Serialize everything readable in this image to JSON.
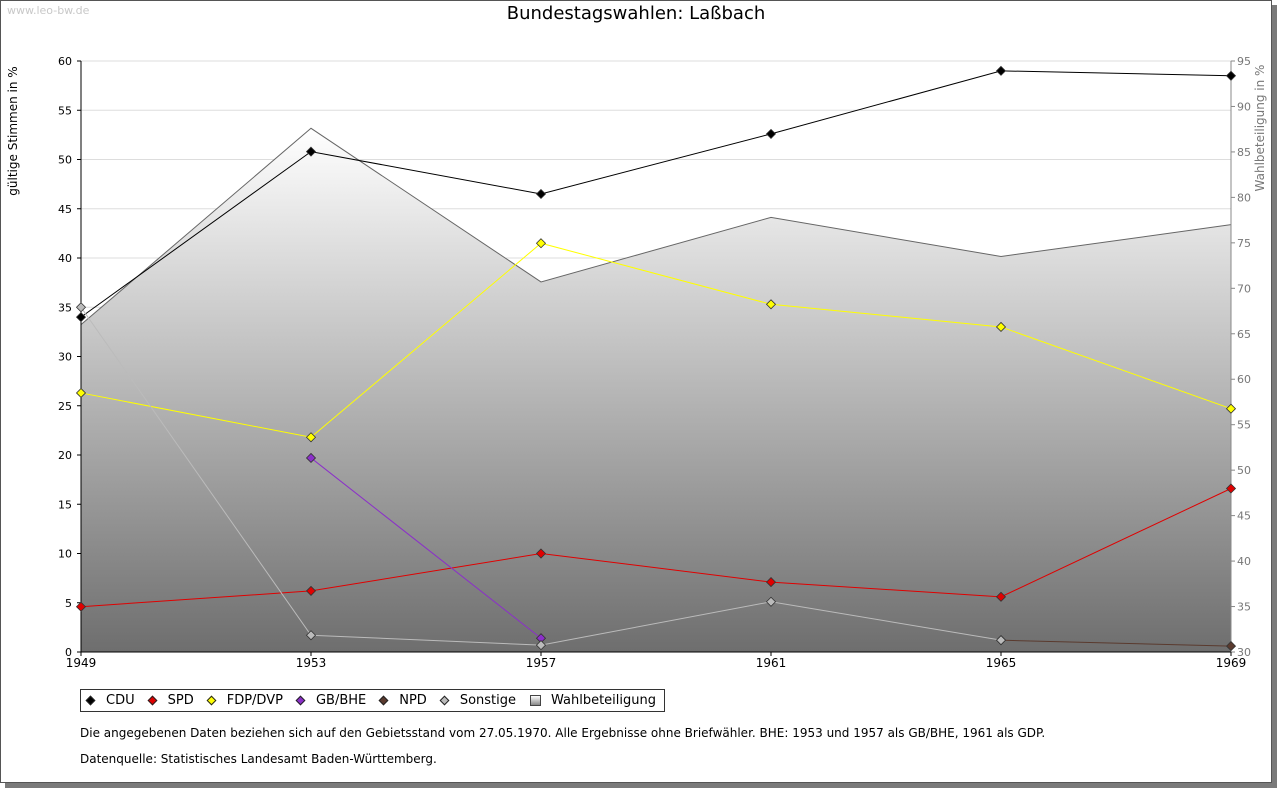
{
  "watermark": "www.leo-bw.de",
  "chart_data": {
    "type": "line",
    "title": "Bundestagswahlen: Laßbach",
    "ylabel": "gültige Stimmen in %",
    "ylabel_right": "Wahlbeteiligung in %",
    "ylim": [
      0,
      60
    ],
    "ylim_right": [
      30,
      95
    ],
    "yticks": [
      0,
      5,
      10,
      15,
      20,
      25,
      30,
      35,
      40,
      45,
      50,
      55,
      60
    ],
    "yticks_right": [
      30,
      35,
      40,
      45,
      50,
      55,
      60,
      65,
      70,
      75,
      80,
      85,
      90,
      95
    ],
    "x": [
      "1949",
      "1953",
      "1957",
      "1961",
      "1965",
      "1969"
    ],
    "turnout": {
      "name": "Wahlbeteiligung",
      "values": [
        66.0,
        87.6,
        70.7,
        77.8,
        73.5,
        77.0
      ]
    },
    "series": [
      {
        "name": "CDU",
        "color": "#000000",
        "values": [
          34.0,
          50.8,
          46.5,
          52.6,
          59.0,
          58.5
        ]
      },
      {
        "name": "SPD",
        "color": "#e00000",
        "values": [
          4.6,
          6.2,
          10.0,
          7.1,
          5.6,
          16.6
        ]
      },
      {
        "name": "FDP/DVP",
        "color": "#ffff00",
        "values": [
          26.3,
          21.8,
          41.5,
          35.3,
          33.0,
          24.7
        ]
      },
      {
        "name": "GB/BHE",
        "color": "#8b2fc9",
        "values": [
          null,
          19.7,
          1.4,
          null,
          null,
          null
        ]
      },
      {
        "name": "NPD",
        "color": "#5a3a2e",
        "values": [
          null,
          null,
          null,
          null,
          1.2,
          0.6
        ]
      },
      {
        "name": "Sonstige",
        "color": "#bbbbbb",
        "values": [
          35.0,
          1.7,
          0.7,
          5.1,
          1.2,
          null
        ]
      }
    ],
    "legend": [
      "CDU",
      "SPD",
      "FDP/DVP",
      "GB/BHE",
      "NPD",
      "Sonstige",
      "Wahlbeteiligung"
    ],
    "legend_position": "bottom-left"
  },
  "notes": {
    "line1": "Die angegebenen Daten beziehen sich auf den Gebietsstand vom 27.05.1970. Alle Ergebnisse ohne Briefwähler. BHE: 1953 und 1957 als GB/BHE, 1961 als GDP.",
    "line2": "Datenquelle: Statistisches Landesamt Baden-Württemberg."
  }
}
